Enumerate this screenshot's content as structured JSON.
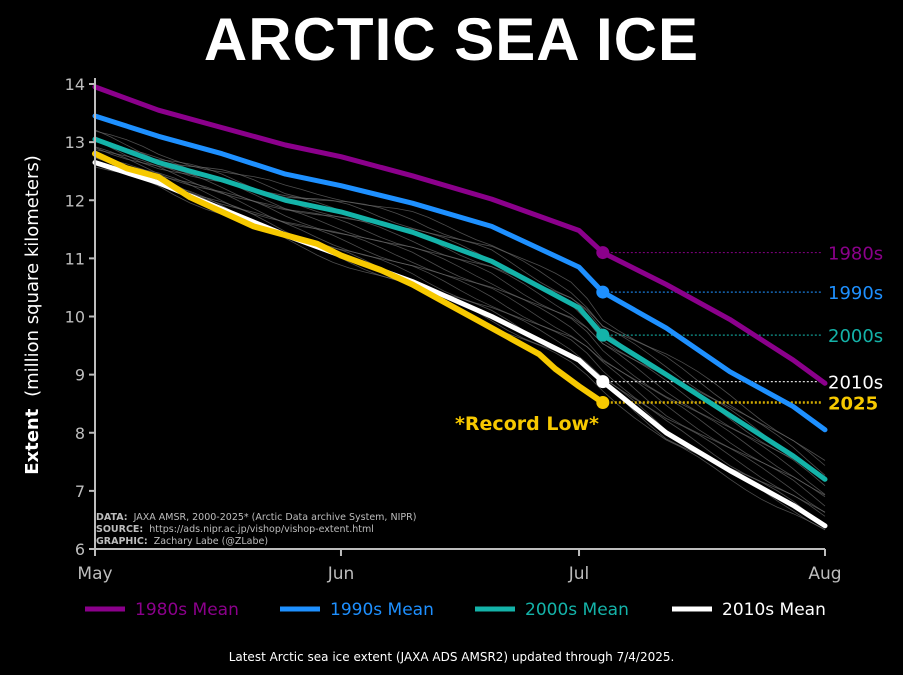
{
  "title": "ARCTIC SEA ICE",
  "footer": "Latest Arctic sea ice extent (JAXA ADS AMSR2) updated through 7/4/2025.",
  "credits": {
    "data_key": "DATA:",
    "data_val": "JAXA AMSR, 2000-2025* (Arctic Data archive System, NIPR)",
    "source_key": "SOURCE:",
    "source_val": "https://ads.nipr.ac.jp/vishop/vishop-extent.html",
    "graphic_key": "GRAPHIC:",
    "graphic_val": "Zachary Labe (@ZLabe)"
  },
  "record_label": "*Record Low*",
  "colors": {
    "1980s": "#8b008b",
    "1990s": "#1e90ff",
    "2000s": "#14b3a9",
    "2010s": "#ffffff",
    "2025": "#f7c900",
    "years": "#6e6e6e"
  },
  "chart_data": {
    "type": "line",
    "xlabel": "",
    "ylabel_bold": "Extent",
    "ylabel_rest": "(million square kilometers)",
    "ylim": [
      6,
      14
    ],
    "x_ticks": [
      {
        "label": "May",
        "day": 0
      },
      {
        "label": "Jun",
        "day": 31
      },
      {
        "label": "Jul",
        "day": 61
      },
      {
        "label": "Aug",
        "day": 92
      }
    ],
    "y_ticks": [
      6,
      7,
      8,
      9,
      10,
      11,
      12,
      13,
      14
    ],
    "current_day": 64,
    "series": [
      {
        "key": "1980s",
        "legend": "1980s Mean",
        "end_label": "1980s",
        "x": [
          0,
          8,
          16,
          24,
          31,
          40,
          50,
          61,
          64,
          72,
          80,
          88,
          92
        ],
        "y": [
          13.95,
          13.55,
          13.25,
          12.95,
          12.75,
          12.42,
          12.02,
          11.48,
          11.1,
          10.55,
          9.95,
          9.25,
          8.85
        ]
      },
      {
        "key": "1990s",
        "legend": "1990s Mean",
        "end_label": "1990s",
        "x": [
          0,
          8,
          16,
          24,
          31,
          40,
          50,
          61,
          64,
          72,
          80,
          88,
          92
        ],
        "y": [
          13.45,
          13.1,
          12.8,
          12.45,
          12.25,
          11.95,
          11.55,
          10.85,
          10.42,
          9.8,
          9.05,
          8.45,
          8.05
        ]
      },
      {
        "key": "2000s",
        "legend": "2000s Mean",
        "end_label": "2000s",
        "x": [
          0,
          8,
          16,
          24,
          31,
          40,
          50,
          61,
          64,
          72,
          80,
          88,
          92
        ],
        "y": [
          13.05,
          12.65,
          12.35,
          12.0,
          11.8,
          11.45,
          10.95,
          10.15,
          9.68,
          9.0,
          8.3,
          7.6,
          7.2
        ]
      },
      {
        "key": "2010s",
        "legend": "2010s Mean",
        "end_label": "2010s",
        "x": [
          0,
          8,
          16,
          24,
          31,
          40,
          50,
          61,
          64,
          72,
          80,
          88,
          92
        ],
        "y": [
          12.65,
          12.3,
          11.85,
          11.4,
          11.05,
          10.6,
          10.0,
          9.25,
          8.88,
          8.0,
          7.35,
          6.75,
          6.4
        ]
      },
      {
        "key": "2025",
        "legend": "",
        "end_label": "2025",
        "x": [
          0,
          4,
          8,
          12,
          16,
          20,
          24,
          28,
          31,
          36,
          40,
          44,
          48,
          52,
          56,
          58,
          61,
          64
        ],
        "y": [
          12.8,
          12.55,
          12.4,
          12.05,
          11.8,
          11.55,
          11.4,
          11.25,
          11.05,
          10.8,
          10.55,
          10.25,
          9.95,
          9.65,
          9.35,
          9.1,
          8.8,
          8.52
        ]
      }
    ]
  }
}
